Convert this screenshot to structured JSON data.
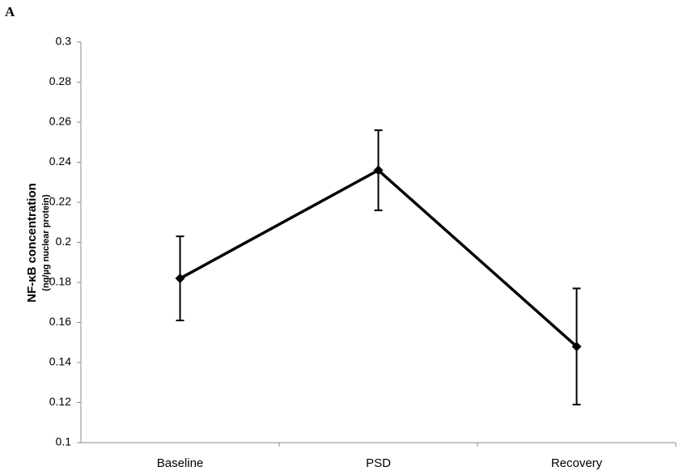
{
  "panel_label": "A",
  "chart_data": {
    "type": "line",
    "y_label": "NF-κB concentration",
    "y_sublabel": "(ng/µg nuclear protein)",
    "categories": [
      "Baseline",
      "PSD",
      "Recovery"
    ],
    "series": [
      {
        "color": "#000000",
        "values": [
          0.182,
          0.236,
          0.148
        ],
        "errors": [
          0.021,
          0.02,
          0.029
        ]
      }
    ],
    "ylim": [
      0.1,
      0.3
    ],
    "yticks": [
      0.1,
      0.12,
      0.14,
      0.16,
      0.18,
      0.2,
      0.22,
      0.24,
      0.26,
      0.28,
      0.3
    ]
  }
}
